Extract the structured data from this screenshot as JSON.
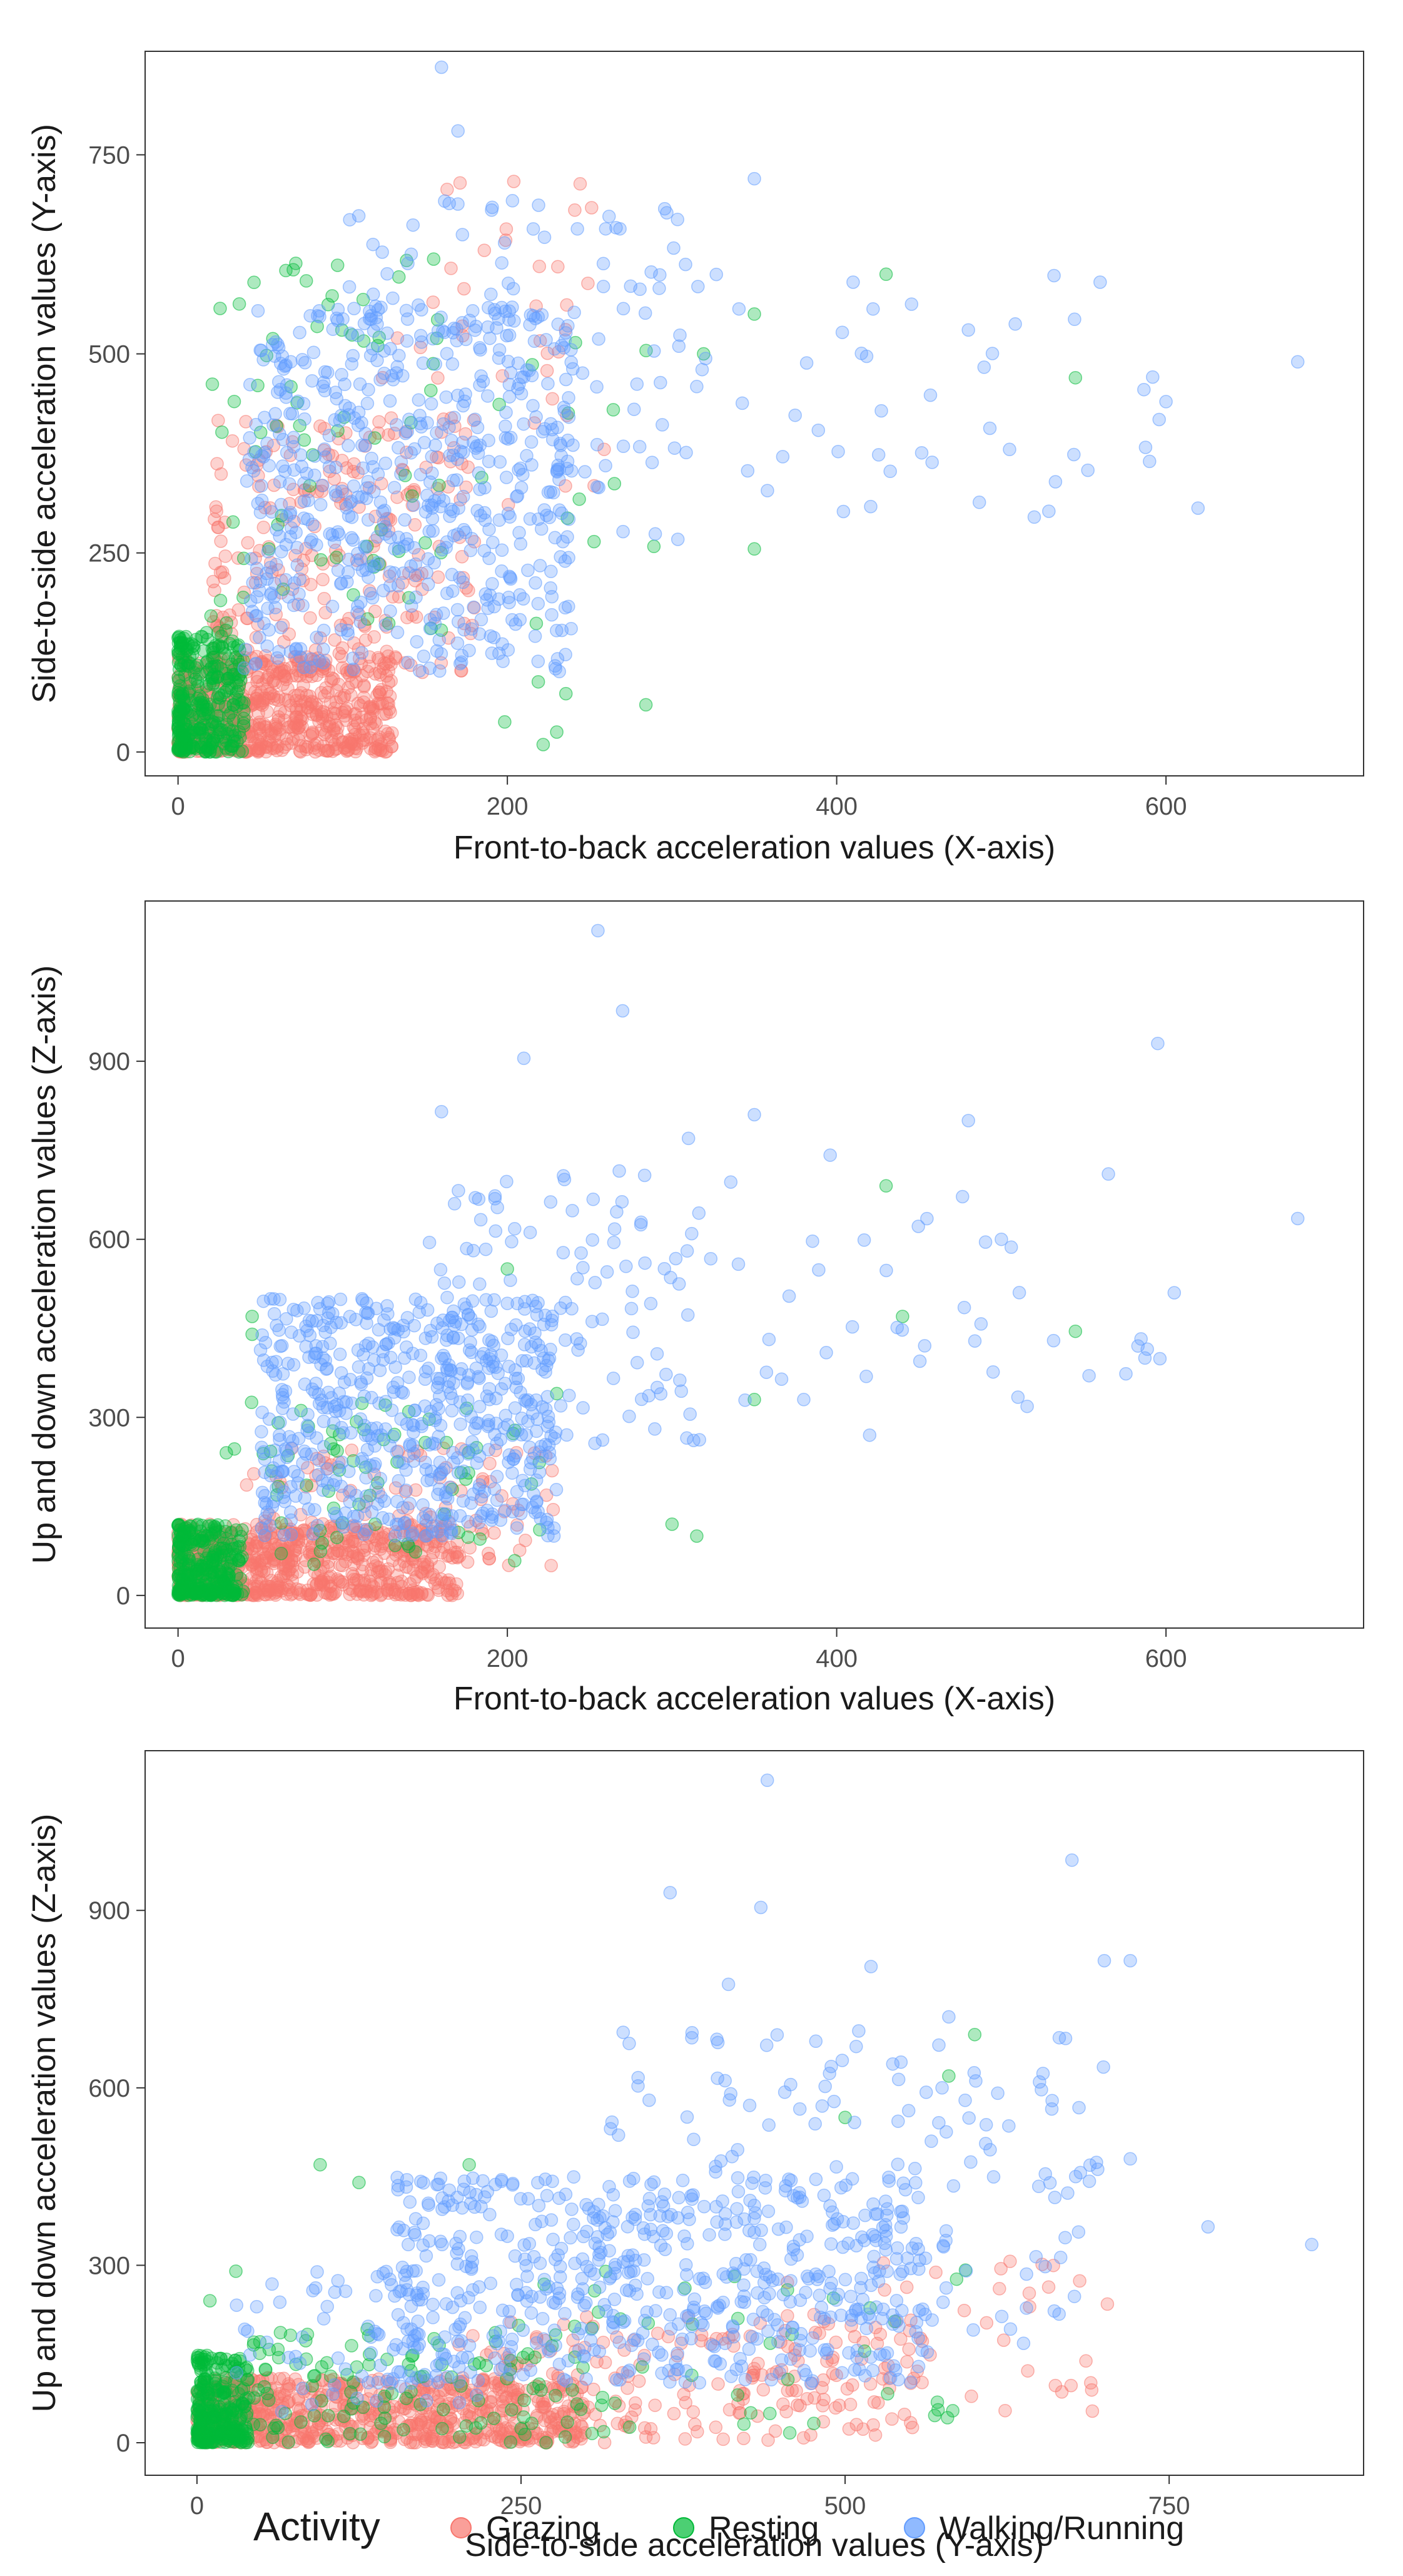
{
  "colors": {
    "Grazing": "#F8766D",
    "Resting": "#00BA38",
    "Walking/Running": "#619CFF"
  },
  "legend": {
    "title": "Activity",
    "entries": [
      "Grazing",
      "Resting",
      "Walking/Running"
    ]
  },
  "chart_data": [
    {
      "type": "scatter",
      "xlabel": "Front-to-back acceleration values (X-axis)",
      "ylabel": "Side-to-side acceleration values (Y-axis)",
      "xlim": [
        -20,
        720
      ],
      "ylim": [
        -30,
        880
      ],
      "xticks": [
        0,
        200,
        400,
        600
      ],
      "yticks": [
        0,
        250,
        500,
        750
      ],
      "seed": 11,
      "series": [
        {
          "name": "Grazing",
          "clusters": [
            {
              "n": 700,
              "x": [
                0,
                130
              ],
              "y": [
                0,
                120
              ],
              "skew": 1.4
            },
            {
              "n": 240,
              "x": [
                20,
                180
              ],
              "y": [
                100,
                420
              ],
              "skew": 1.2
            },
            {
              "n": 40,
              "x": [
                120,
                260
              ],
              "y": [
                300,
                720
              ],
              "skew": 1.0
            }
          ]
        },
        {
          "name": "Resting",
          "clusters": [
            {
              "n": 320,
              "x": [
                0,
                40
              ],
              "y": [
                0,
                150
              ],
              "skew": 1.6
            },
            {
              "n": 70,
              "x": [
                20,
                160
              ],
              "y": [
                150,
                620
              ],
              "skew": 1.0
            },
            {
              "n": 22,
              "x": [
                150,
                320
              ],
              "y": [
                0,
                560
              ],
              "skew": 1.0
            }
          ],
          "points": [
            [
              430,
              600
            ],
            [
              545,
              470
            ],
            [
              350,
              550
            ],
            [
              350,
              255
            ],
            [
              230,
              25
            ]
          ]
        },
        {
          "name": "Walking/Running",
          "clusters": [
            {
              "n": 560,
              "x": [
                40,
                240
              ],
              "y": [
                100,
                560
              ],
              "skew": 1.0
            },
            {
              "n": 130,
              "x": [
                100,
                320
              ],
              "y": [
                250,
                700
              ],
              "skew": 1.0
            },
            {
              "n": 40,
              "x": [
                320,
                620
              ],
              "y": [
                290,
                600
              ],
              "skew": 1.0
            }
          ],
          "points": [
            [
              160,
              860
            ],
            [
              170,
              780
            ],
            [
              350,
              720
            ],
            [
              680,
              490
            ],
            [
              560,
              590
            ],
            [
              480,
              530
            ],
            [
              410,
              590
            ],
            [
              600,
              440
            ],
            [
              590,
              365
            ],
            [
              505,
              380
            ],
            [
              520,
              295
            ]
          ]
        }
      ]
    },
    {
      "type": "scatter",
      "xlabel": "Front-to-back acceleration values (X-axis)",
      "ylabel": "Up and down acceleration values (Z-axis)",
      "xlim": [
        -20,
        720
      ],
      "ylim": [
        -55,
        1170
      ],
      "xticks": [
        0,
        200,
        400,
        600
      ],
      "yticks": [
        0,
        300,
        600,
        900
      ],
      "seed": 23,
      "series": [
        {
          "name": "Grazing",
          "clusters": [
            {
              "n": 700,
              "x": [
                0,
                170
              ],
              "y": [
                0,
                120
              ],
              "skew": 1.4
            },
            {
              "n": 120,
              "x": [
                40,
                230
              ],
              "y": [
                50,
                250
              ],
              "skew": 1.2
            }
          ]
        },
        {
          "name": "Resting",
          "clusters": [
            {
              "n": 320,
              "x": [
                0,
                40
              ],
              "y": [
                0,
                120
              ],
              "skew": 1.6
            },
            {
              "n": 70,
              "x": [
                20,
                220
              ],
              "y": [
                50,
                330
              ],
              "skew": 1.0
            }
          ],
          "points": [
            [
              430,
              690
            ],
            [
              440,
              470
            ],
            [
              545,
              445
            ],
            [
              350,
              330
            ],
            [
              300,
              120
            ],
            [
              230,
              340
            ],
            [
              45,
              470
            ],
            [
              45,
              440
            ],
            [
              200,
              550
            ],
            [
              315,
              100
            ]
          ]
        },
        {
          "name": "Walking/Running",
          "clusters": [
            {
              "n": 560,
              "x": [
                50,
                230
              ],
              "y": [
                100,
                500
              ],
              "skew": 1.0
            },
            {
              "n": 120,
              "x": [
                150,
                320
              ],
              "y": [
                250,
                720
              ],
              "skew": 1.0
            },
            {
              "n": 40,
              "x": [
                320,
                600
              ],
              "y": [
                300,
                750
              ],
              "skew": 1.0
            }
          ],
          "points": [
            [
              255,
              1120
            ],
            [
              270,
              985
            ],
            [
              210,
              905
            ],
            [
              160,
              815
            ],
            [
              595,
              930
            ],
            [
              680,
              635
            ],
            [
              565,
              710
            ],
            [
              480,
              800
            ],
            [
              310,
              770
            ],
            [
              350,
              810
            ],
            [
              605,
              510
            ],
            [
              500,
              600
            ],
            [
              420,
              270
            ],
            [
              380,
              330
            ]
          ]
        }
      ]
    },
    {
      "type": "scatter",
      "xlabel": "Side-to-side acceleration values (Y-axis)",
      "ylabel": "Up and down acceleration values (Z-axis)",
      "xlim": [
        -40,
        900
      ],
      "ylim": [
        -55,
        1170
      ],
      "xticks": [
        0,
        250,
        500,
        750
      ],
      "yticks": [
        0,
        300,
        600,
        900
      ],
      "seed": 37,
      "series": [
        {
          "name": "Grazing",
          "clusters": [
            {
              "n": 720,
              "x": [
                0,
                300
              ],
              "y": [
                0,
                110
              ],
              "skew": 1.3
            },
            {
              "n": 200,
              "x": [
                200,
                560
              ],
              "y": [
                0,
                220
              ],
              "skew": 1.0
            },
            {
              "n": 40,
              "x": [
                450,
                720
              ],
              "y": [
                50,
                320
              ],
              "skew": 1.0
            }
          ]
        },
        {
          "name": "Resting",
          "clusters": [
            {
              "n": 300,
              "x": [
                0,
                40
              ],
              "y": [
                0,
                150
              ],
              "skew": 1.5
            },
            {
              "n": 120,
              "x": [
                40,
                320
              ],
              "y": [
                0,
                200
              ],
              "skew": 1.2
            },
            {
              "n": 40,
              "x": [
                250,
                600
              ],
              "y": [
                0,
                300
              ],
              "skew": 1.0
            }
          ],
          "points": [
            [
              95,
              470
            ],
            [
              125,
              440
            ],
            [
              210,
              470
            ],
            [
              600,
              690
            ],
            [
              500,
              550
            ],
            [
              580,
              620
            ],
            [
              10,
              240
            ],
            [
              30,
              290
            ]
          ]
        },
        {
          "name": "Walking/Running",
          "clusters": [
            {
              "n": 520,
              "x": [
                150,
                560
              ],
              "y": [
                100,
                450
              ],
              "skew": 1.0
            },
            {
              "n": 180,
              "x": [
                300,
                700
              ],
              "y": [
                150,
                700
              ],
              "skew": 1.0
            },
            {
              "n": 80,
              "x": [
                30,
                220
              ],
              "y": [
                50,
                300
              ],
              "skew": 1.0
            }
          ],
          "points": [
            [
              440,
              1120
            ],
            [
              675,
              985
            ],
            [
              365,
              930
            ],
            [
              435,
              905
            ],
            [
              700,
              815
            ],
            [
              720,
              815
            ],
            [
              520,
              805
            ],
            [
              410,
              775
            ],
            [
              860,
              335
            ],
            [
              780,
              365
            ],
            [
              720,
              480
            ],
            [
              650,
              610
            ],
            [
              580,
              720
            ]
          ]
        }
      ]
    }
  ]
}
